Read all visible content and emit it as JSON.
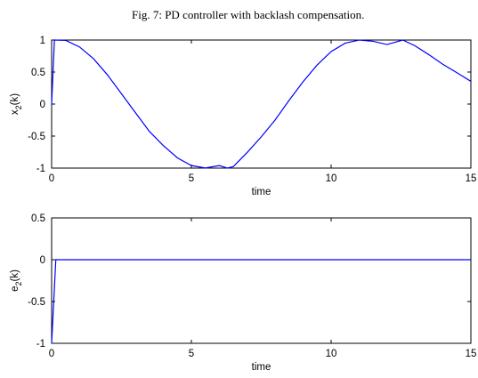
{
  "figure_title": "Fig. 7: PD controller with backlash compensation.",
  "colors": {
    "series": "#0000ff",
    "axes": "#000000",
    "background": "#ffffff"
  },
  "chart_data": [
    {
      "type": "line",
      "title": "",
      "xlabel": "time",
      "ylabel": "x2(k)",
      "ylabel_main": "x",
      "ylabel_sub": "2",
      "ylabel_suffix": "(k)",
      "xlim": [
        0,
        15
      ],
      "ylim": [
        -1,
        1
      ],
      "xticks": [
        0,
        5,
        10,
        15
      ],
      "yticks": [
        -1,
        -0.5,
        0,
        0.5,
        1
      ],
      "xtick_labels": [
        "0",
        "5",
        "10",
        "15"
      ],
      "ytick_labels": [
        "-1",
        "-0.5",
        "0",
        "0.5",
        "1"
      ],
      "grid": false,
      "series": [
        {
          "x": [
            0,
            0.1,
            0.5,
            1,
            1.5,
            2,
            2.5,
            3,
            3.5,
            4,
            4.5,
            5,
            5.5,
            6,
            6.283,
            6.5,
            7,
            7.5,
            8,
            8.5,
            9,
            9.5,
            10,
            10.5,
            11,
            11.5,
            12,
            12.566,
            13,
            13.5,
            14,
            14.5,
            15
          ],
          "y": [
            0,
            1.0,
            0.995,
            0.891,
            0.707,
            0.454,
            0.16,
            -0.135,
            -0.428,
            -0.65,
            -0.84,
            -0.96,
            -0.998,
            -0.96,
            -1.0,
            -0.977,
            -0.754,
            -0.512,
            -0.246,
            0.061,
            0.35,
            0.61,
            0.82,
            0.95,
            0.999,
            0.98,
            0.93,
            1.0,
            0.91,
            0.77,
            0.62,
            0.49,
            0.355
          ]
        }
      ]
    },
    {
      "type": "line",
      "title": "",
      "xlabel": "time",
      "ylabel": "e2(k)",
      "ylabel_main": "e",
      "ylabel_sub": "2",
      "ylabel_suffix": "(k)",
      "xlim": [
        0,
        15
      ],
      "ylim": [
        -1,
        0.5
      ],
      "xticks": [
        0,
        5,
        10,
        15
      ],
      "yticks": [
        -1,
        -0.5,
        0,
        0.5
      ],
      "xtick_labels": [
        "0",
        "5",
        "10",
        "15"
      ],
      "ytick_labels": [
        "-1",
        "-0.5",
        "0",
        "0.5"
      ],
      "grid": false,
      "series": [
        {
          "x": [
            0,
            0.15,
            15
          ],
          "y": [
            -1,
            0,
            0
          ]
        }
      ]
    }
  ]
}
